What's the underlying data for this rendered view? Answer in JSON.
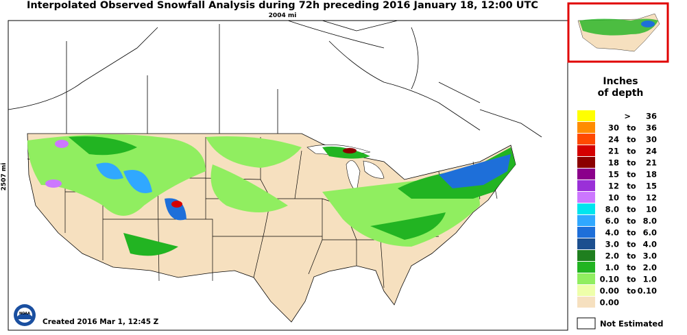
{
  "header": {
    "title": "Interpolated Observed Snowfall Analysis during 72h preceding 2016 January 18, 12:00 UTC",
    "width_label": "2004 mi",
    "height_label": "2507 mi"
  },
  "footer": {
    "created": "Created 2016 Mar 1, 12:45 Z",
    "logo": "NOAA"
  },
  "legend": {
    "title_line1": "Inches",
    "title_line2": "of depth",
    "rows": [
      {
        "color": "#ffff00",
        "low": ">",
        "high": "36"
      },
      {
        "color": "#ff8c00",
        "low": "30",
        "sep": "to",
        "high": "36"
      },
      {
        "color": "#ff4a00",
        "low": "24",
        "sep": "to",
        "high": "30"
      },
      {
        "color": "#d40000",
        "low": "21",
        "sep": "to",
        "high": "24"
      },
      {
        "color": "#8b0000",
        "low": "18",
        "sep": "to",
        "high": "21"
      },
      {
        "color": "#8b008b",
        "low": "15",
        "sep": "to",
        "high": "18"
      },
      {
        "color": "#9a30d8",
        "low": "12",
        "sep": "to",
        "high": "15"
      },
      {
        "color": "#cc77ff",
        "low": "10",
        "sep": "to",
        "high": "12"
      },
      {
        "color": "#00e5ee",
        "low": "8.0",
        "sep": "to",
        "high": "10"
      },
      {
        "color": "#30a8ff",
        "low": "6.0",
        "sep": "to",
        "high": "8.0"
      },
      {
        "color": "#1e6fd9",
        "low": "4.0",
        "sep": "to",
        "high": "6.0"
      },
      {
        "color": "#1c4f8f",
        "low": "3.0",
        "sep": "to",
        "high": "4.0"
      },
      {
        "color": "#1f7f1f",
        "low": "2.0",
        "sep": "to",
        "high": "3.0"
      },
      {
        "color": "#22b422",
        "low": "1.0",
        "sep": "to",
        "high": "2.0"
      },
      {
        "color": "#90ee60",
        "low": "0.10",
        "sep": "to",
        "high": "1.0"
      },
      {
        "color": "#eeffaa",
        "low": "0.00",
        "sep": "to",
        "high": "0.10"
      },
      {
        "color": "#f6e0bf",
        "low": "0.00"
      }
    ],
    "not_estimated": "Not Estimated"
  }
}
